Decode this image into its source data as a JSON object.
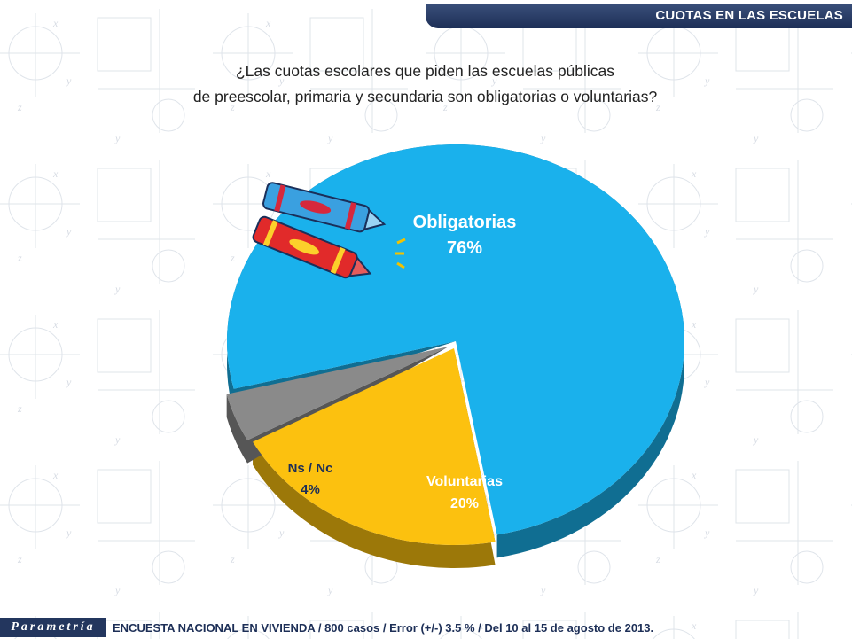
{
  "header": {
    "title": "CUOTAS EN LAS ESCUELAS"
  },
  "question": {
    "line1": "¿Las cuotas escolares que piden las escuelas públicas",
    "line2": "de preescolar, primaria y secundaria son obligatorias o voluntarias?"
  },
  "chart_data": {
    "type": "pie",
    "title": "",
    "slices": [
      {
        "label": "Obligatorias",
        "value": 76,
        "value_label": "76%",
        "color": "#1ab1ec"
      },
      {
        "label": "Voluntarias",
        "value": 20,
        "value_label": "20%",
        "color": "#fcc10f"
      },
      {
        "label": "Ns / Nc",
        "value": 4,
        "value_label": "4%",
        "color": "#8a8a8a"
      }
    ],
    "legend": "none"
  },
  "footer": {
    "logo": "Parametría",
    "note": "ENCUESTA NACIONAL EN VIVIENDA / 800 casos / Error (+/-) 3.5 % / Del 10 al 15 de agosto de 2013."
  },
  "background_watermark": "Parametría"
}
